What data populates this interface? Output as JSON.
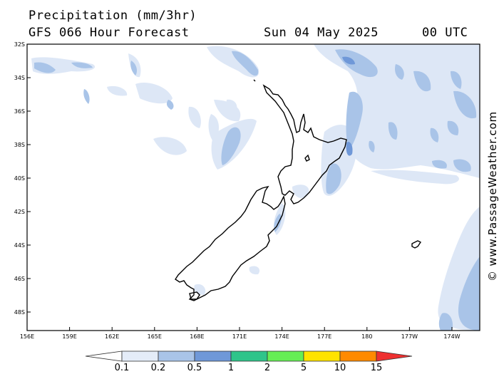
{
  "header": {
    "title": "Precipitation (mm/3hr)",
    "model": "GFS 066 Hour Forecast",
    "date": "Sun 04 May 2025",
    "time": "00 UTC"
  },
  "credit": "© www.PassageWeather.com",
  "axes": {
    "latitude_labels": [
      "32S",
      "34S",
      "36S",
      "38S",
      "40S",
      "42S",
      "44S",
      "46S",
      "48S"
    ],
    "longitude_labels": [
      "156E",
      "159E",
      "162E",
      "165E",
      "168E",
      "171E",
      "174E",
      "177E",
      "180",
      "177W",
      "174W"
    ]
  },
  "legend": {
    "thresholds": [
      "0.1",
      "0.2",
      "0.5",
      "1",
      "2",
      "5",
      "10",
      "15"
    ],
    "colors": [
      "#ffffff",
      "#e4ecf8",
      "#a9c4e8",
      "#6f98d8",
      "#2fc48a",
      "#66ee55",
      "#ffe300",
      "#ff8a00",
      "#ee3030"
    ]
  },
  "colors": {
    "light": "#dde7f6",
    "medium": "#a9c4e8",
    "dark": "#6f98d8",
    "land_outline": "#000000"
  }
}
